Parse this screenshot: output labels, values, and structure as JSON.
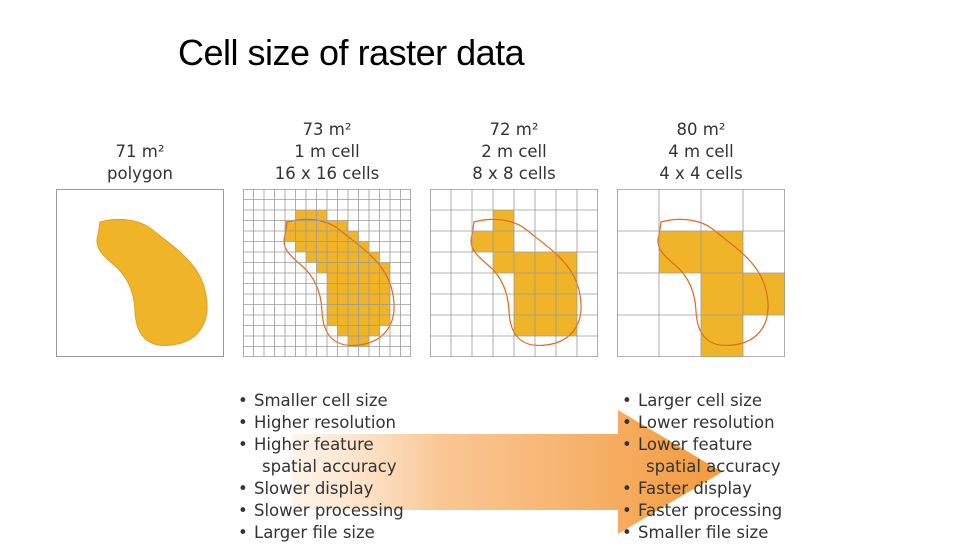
{
  "title": "Cell size of raster data",
  "colors": {
    "fill": "#f0b429",
    "outline": "#e06a1e",
    "grid": "#9a9a9a",
    "arrow": "#f5a14a"
  },
  "panels": [
    {
      "caption": [
        "71 m²",
        "polygon"
      ],
      "grid": 0
    },
    {
      "caption": [
        "73 m²",
        "1 m cell",
        "16 x 16 cells"
      ],
      "grid": 16
    },
    {
      "caption": [
        "72 m²",
        "2 m cell",
        "8 x 8 cells"
      ],
      "grid": 8
    },
    {
      "caption": [
        "80 m²",
        "4 m cell",
        "4 x 4 cells"
      ],
      "grid": 4
    }
  ],
  "left_list": {
    "bullet": "•",
    "items": [
      "Smaller cell size",
      "Higher resolution",
      "Higher feature",
      "spatial accuracy",
      "Slower display",
      "Slower processing",
      "Larger file size"
    ]
  },
  "right_list": {
    "bullet": "•",
    "items": [
      "Larger cell size",
      "Lower resolution",
      "Lower feature",
      "spatial accuracy",
      "Faster display",
      "Faster processing",
      "Smaller file size"
    ]
  }
}
